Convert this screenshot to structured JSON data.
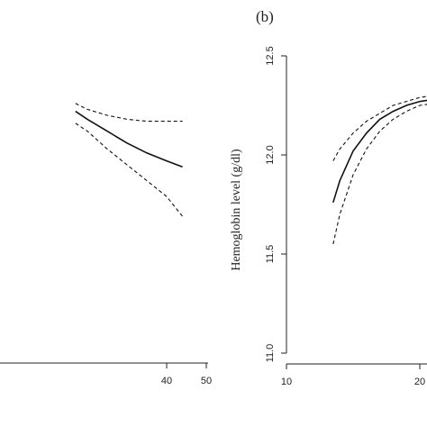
{
  "chart_data": [
    {
      "type": "line",
      "panel": "a",
      "panel_label": "",
      "title": "",
      "xlabel": "",
      "ylabel": "",
      "xlim": [
        17,
        50
      ],
      "ylim": [
        11.0,
        12.5
      ],
      "x_ticks": [
        40,
        50
      ],
      "x_tick_labels": [
        "40",
        "50"
      ],
      "grid": false,
      "series": [
        {
          "style": "solid",
          "x": [
            17,
            20,
            25,
            30,
            35,
            40,
            44
          ],
          "y": [
            12.22,
            12.18,
            12.12,
            12.06,
            12.01,
            11.97,
            11.94
          ]
        },
        {
          "style": "dashed",
          "x": [
            17,
            20,
            25,
            30,
            35,
            40,
            44
          ],
          "y": [
            12.26,
            12.23,
            12.2,
            12.18,
            12.17,
            12.17,
            12.17
          ]
        },
        {
          "style": "dashed",
          "x": [
            17,
            20,
            25,
            30,
            35,
            40,
            44
          ],
          "y": [
            12.16,
            12.12,
            12.03,
            11.95,
            11.87,
            11.79,
            11.69
          ]
        }
      ]
    },
    {
      "type": "line",
      "panel": "b",
      "panel_label": "(b)",
      "title": "",
      "xlabel": "",
      "ylabel": "Hemoglobin level (g/dl)",
      "xlim": [
        10,
        22
      ],
      "ylim": [
        11.0,
        12.5
      ],
      "x_ticks": [
        10,
        20
      ],
      "x_tick_labels": [
        "10",
        "20"
      ],
      "y_ticks": [
        11.0,
        11.5,
        12.0,
        12.5
      ],
      "y_tick_labels": [
        "11.0",
        "11.5",
        "12.0",
        "12.5"
      ],
      "grid": false,
      "series": [
        {
          "style": "solid",
          "x": [
            13.5,
            14,
            15,
            16,
            17,
            18,
            19,
            20,
            21,
            22
          ],
          "y": [
            11.76,
            11.87,
            12.02,
            12.11,
            12.18,
            12.22,
            12.25,
            12.27,
            12.28,
            12.29
          ]
        },
        {
          "style": "dashed",
          "x": [
            13.5,
            14,
            15,
            16,
            17,
            18,
            19,
            20,
            21,
            22
          ],
          "y": [
            11.97,
            12.03,
            12.11,
            12.17,
            12.21,
            12.25,
            12.27,
            12.29,
            12.3,
            12.31
          ]
        },
        {
          "style": "dashed",
          "x": [
            13.5,
            14,
            15,
            16,
            17,
            18,
            19,
            20,
            21,
            22
          ],
          "y": [
            11.55,
            11.7,
            11.9,
            12.03,
            12.12,
            12.18,
            12.22,
            12.25,
            12.26,
            12.27
          ]
        }
      ]
    }
  ]
}
